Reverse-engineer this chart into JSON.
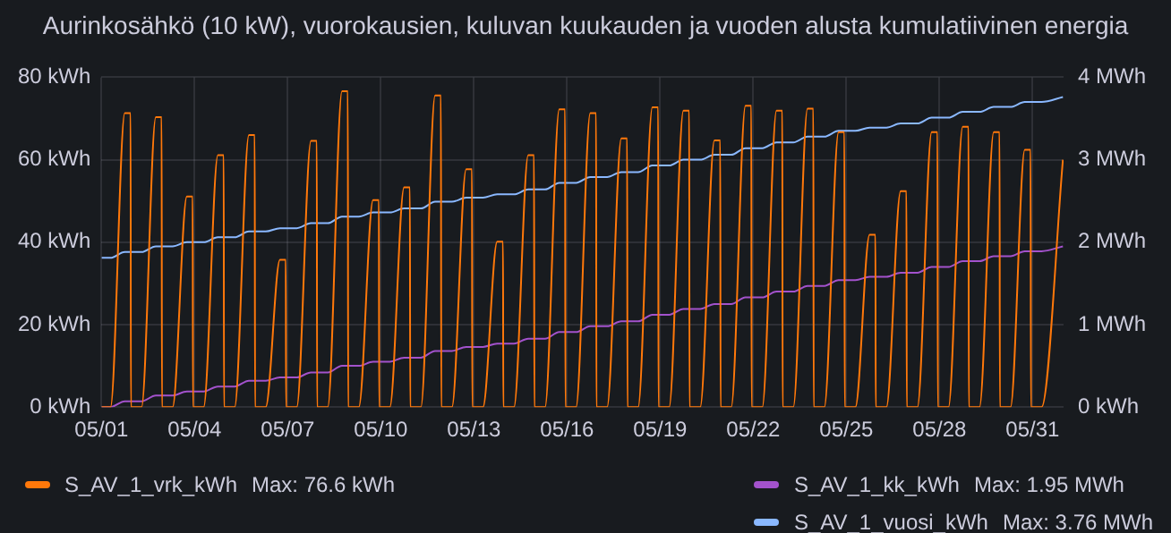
{
  "chart_data": {
    "type": "line",
    "title": "Aurinkosähkö (10 kW), vuorokausien, kuluvan kuukauden ja vuoden alusta kumulatiivinen energia",
    "xlim": [
      "--05-01",
      "--06-01"
    ],
    "xticks": [
      {
        "value": "--05-01",
        "label": "05/01"
      },
      {
        "value": "--05-04",
        "label": "05/04"
      },
      {
        "value": "--05-07",
        "label": "05/07"
      },
      {
        "value": "--05-10",
        "label": "05/10"
      },
      {
        "value": "--05-13",
        "label": "05/13"
      },
      {
        "value": "--05-16",
        "label": "05/16"
      },
      {
        "value": "--05-19",
        "label": "05/19"
      },
      {
        "value": "--05-22",
        "label": "05/22"
      },
      {
        "value": "--05-25",
        "label": "05/25"
      },
      {
        "value": "--05-28",
        "label": "05/28"
      },
      {
        "value": "--05-31",
        "label": "05/31"
      }
    ],
    "ylim": [
      0,
      80
    ],
    "yticks": [
      {
        "value": 0,
        "label": "0 kWh"
      },
      {
        "value": 20,
        "label": "20 kWh"
      },
      {
        "value": 40,
        "label": "40 kWh"
      },
      {
        "value": 60,
        "label": "60 kWh"
      },
      {
        "value": 80,
        "label": "80 kWh"
      }
    ],
    "y2lim": [
      0,
      4
    ],
    "y2ticks": [
      {
        "value": 0,
        "label": "0 kWh"
      },
      {
        "value": 1,
        "label": "1 MWh"
      },
      {
        "value": 2,
        "label": "2 MWh"
      },
      {
        "value": 3,
        "label": "3 MWh"
      },
      {
        "value": 4,
        "label": "4 MWh"
      }
    ],
    "grid": true,
    "legend": "bottom",
    "marker": "none",
    "line_style": "solid",
    "annotations": [
      "Max: 76.6 kWh",
      "Max: 1.95 MWh",
      "Max: 3.76 MWh"
    ],
    "series": [
      {
        "name": "S_AV_1_vrk_kWh",
        "color": "#ff780a",
        "x": [
          "--05-01T00:00",
          "--05-01T07:00",
          "--05-01T18:00",
          "--05-01T22:30",
          "--05-01T22:45",
          "--05-02T07:00",
          "--05-02T18:00",
          "--05-02T22:30",
          "--05-02T22:45",
          "--05-03T07:00",
          "--05-03T18:00",
          "--05-03T22:30",
          "--05-03T22:45",
          "--05-04T07:00",
          "--05-04T18:00",
          "--05-04T22:30",
          "--05-04T22:45",
          "--05-05T07:00",
          "--05-05T18:00",
          "--05-05T22:30",
          "--05-05T22:45",
          "--05-06T07:00",
          "--05-06T18:00",
          "--05-06T22:30",
          "--05-06T22:45",
          "--05-07T07:00",
          "--05-07T18:00",
          "--05-07T22:30",
          "--05-07T22:45",
          "--05-08T07:00",
          "--05-08T18:00",
          "--05-08T22:30",
          "--05-08T22:45",
          "--05-09T07:00",
          "--05-09T18:00",
          "--05-09T22:30",
          "--05-09T22:45",
          "--05-10T07:00",
          "--05-10T18:00",
          "--05-10T22:30",
          "--05-10T22:45",
          "--05-11T07:00",
          "--05-11T18:00",
          "--05-11T22:30",
          "--05-11T22:45",
          "--05-12T07:00",
          "--05-12T18:00",
          "--05-12T22:30",
          "--05-12T22:45",
          "--05-13T07:00",
          "--05-13T18:00",
          "--05-13T22:30",
          "--05-13T22:45",
          "--05-14T07:00",
          "--05-14T18:00",
          "--05-14T22:30",
          "--05-14T22:45",
          "--05-15T07:00",
          "--05-15T18:00",
          "--05-15T22:30",
          "--05-15T22:45",
          "--05-16T07:00",
          "--05-16T18:00",
          "--05-16T22:30",
          "--05-16T22:45",
          "--05-17T07:00",
          "--05-17T18:00",
          "--05-17T22:30",
          "--05-17T22:45",
          "--05-18T07:00",
          "--05-18T18:00",
          "--05-18T22:30",
          "--05-18T22:45",
          "--05-19T07:00",
          "--05-19T18:00",
          "--05-19T22:30",
          "--05-19T22:45",
          "--05-20T07:00",
          "--05-20T18:00",
          "--05-20T22:30",
          "--05-20T22:45",
          "--05-21T07:00",
          "--05-21T18:00",
          "--05-21T22:30",
          "--05-21T22:45",
          "--05-22T07:00",
          "--05-22T18:00",
          "--05-22T22:30",
          "--05-22T22:45",
          "--05-23T07:00",
          "--05-23T18:00",
          "--05-23T22:30",
          "--05-23T22:45",
          "--05-24T07:00",
          "--05-24T18:00",
          "--05-24T22:30",
          "--05-24T22:45",
          "--05-25T07:00",
          "--05-25T18:00",
          "--05-25T22:30",
          "--05-25T22:45",
          "--05-26T07:00",
          "--05-26T18:00",
          "--05-26T22:30",
          "--05-26T22:45",
          "--05-27T07:00",
          "--05-27T18:00",
          "--05-27T22:30",
          "--05-27T22:45",
          "--05-28T07:00",
          "--05-28T18:00",
          "--05-28T22:30",
          "--05-28T22:45",
          "--05-29T07:00",
          "--05-29T18:00",
          "--05-29T22:30",
          "--05-29T22:45",
          "--05-30T07:00",
          "--05-30T18:00",
          "--05-30T22:30",
          "--05-30T22:45",
          "--05-31T07:00",
          "--05-31T23:30"
        ],
        "values": [
          0,
          0,
          71.3,
          71.3,
          0,
          0,
          70.3,
          70.3,
          0,
          0,
          51.1,
          51.1,
          0,
          0,
          61.1,
          61.1,
          0,
          0,
          66.0,
          66.0,
          0,
          0,
          35.7,
          35.7,
          0,
          0,
          64.6,
          64.6,
          0,
          0,
          76.6,
          76.6,
          0,
          0,
          50.2,
          50.2,
          0,
          0,
          53.3,
          53.3,
          0,
          0,
          75.6,
          75.6,
          0,
          0,
          57.7,
          57.7,
          0,
          0,
          40.1,
          40.1,
          0,
          0,
          61.1,
          61.1,
          0,
          0,
          72.2,
          72.2,
          0,
          0,
          71.3,
          71.3,
          0,
          0,
          65.2,
          65.2,
          0,
          0,
          72.7,
          72.7,
          0,
          0,
          71.9,
          71.9,
          0,
          0,
          64.7,
          64.7,
          0,
          0,
          73.1,
          73.1,
          0,
          0,
          71.9,
          71.9,
          0,
          0,
          72.4,
          72.4,
          0,
          0,
          66.7,
          66.7,
          0,
          0,
          41.8,
          41.8,
          0,
          0,
          52.4,
          52.4,
          0,
          0,
          66.7,
          66.7,
          0,
          0,
          68.0,
          68.0,
          0,
          0,
          66.7,
          66.7,
          0,
          0,
          62.4,
          62.4,
          0,
          0,
          60.0
        ]
      },
      {
        "name": "S_AV_1_kk_kWh",
        "color": "#a352cc",
        "axis": "y2",
        "x": [
          "--05-01T00:00",
          "--05-01T07:00",
          "--05-01T18:00",
          "--05-02T07:00",
          "--05-02T18:00",
          "--05-03T07:00",
          "--05-03T18:00",
          "--05-04T07:00",
          "--05-04T18:00",
          "--05-05T07:00",
          "--05-05T18:00",
          "--05-06T07:00",
          "--05-06T18:00",
          "--05-07T07:00",
          "--05-07T18:00",
          "--05-08T07:00",
          "--05-08T18:00",
          "--05-09T07:00",
          "--05-09T18:00",
          "--05-10T07:00",
          "--05-10T18:00",
          "--05-11T07:00",
          "--05-11T18:00",
          "--05-12T07:00",
          "--05-12T18:00",
          "--05-13T07:00",
          "--05-13T18:00",
          "--05-14T07:00",
          "--05-14T18:00",
          "--05-15T07:00",
          "--05-15T18:00",
          "--05-16T07:00",
          "--05-16T18:00",
          "--05-17T07:00",
          "--05-17T18:00",
          "--05-18T07:00",
          "--05-18T18:00",
          "--05-19T07:00",
          "--05-19T18:00",
          "--05-20T07:00",
          "--05-20T18:00",
          "--05-21T07:00",
          "--05-21T18:00",
          "--05-22T07:00",
          "--05-22T18:00",
          "--05-23T07:00",
          "--05-23T18:00",
          "--05-24T07:00",
          "--05-24T18:00",
          "--05-25T07:00",
          "--05-25T18:00",
          "--05-26T07:00",
          "--05-26T18:00",
          "--05-27T07:00",
          "--05-27T18:00",
          "--05-28T07:00",
          "--05-28T18:00",
          "--05-29T07:00",
          "--05-29T18:00",
          "--05-30T07:00",
          "--05-30T18:00",
          "--05-31T07:00",
          "--05-31T23:30"
        ],
        "values": [
          0,
          0,
          0.07,
          0.07,
          0.14,
          0.14,
          0.19,
          0.19,
          0.25,
          0.25,
          0.32,
          0.32,
          0.36,
          0.36,
          0.42,
          0.42,
          0.5,
          0.5,
          0.55,
          0.55,
          0.6,
          0.6,
          0.68,
          0.68,
          0.73,
          0.73,
          0.77,
          0.77,
          0.83,
          0.83,
          0.91,
          0.91,
          0.98,
          0.98,
          1.04,
          1.04,
          1.12,
          1.12,
          1.19,
          1.19,
          1.25,
          1.25,
          1.33,
          1.33,
          1.4,
          1.4,
          1.47,
          1.47,
          1.54,
          1.54,
          1.58,
          1.58,
          1.63,
          1.63,
          1.7,
          1.7,
          1.77,
          1.77,
          1.83,
          1.83,
          1.89,
          1.89,
          1.95
        ]
      },
      {
        "name": "S_AV_1_vuosi_kWh",
        "color": "#8ab8ff",
        "axis": "y2",
        "x": [
          "--05-01T00:00",
          "--05-01T07:00",
          "--05-01T18:00",
          "--05-02T07:00",
          "--05-02T18:00",
          "--05-03T07:00",
          "--05-03T18:00",
          "--05-04T07:00",
          "--05-04T18:00",
          "--05-05T07:00",
          "--05-05T18:00",
          "--05-06T07:00",
          "--05-06T18:00",
          "--05-07T07:00",
          "--05-07T18:00",
          "--05-08T07:00",
          "--05-08T18:00",
          "--05-09T07:00",
          "--05-09T18:00",
          "--05-10T07:00",
          "--05-10T18:00",
          "--05-11T07:00",
          "--05-11T18:00",
          "--05-12T07:00",
          "--05-12T18:00",
          "--05-13T07:00",
          "--05-13T18:00",
          "--05-14T07:00",
          "--05-14T18:00",
          "--05-15T07:00",
          "--05-15T18:00",
          "--05-16T07:00",
          "--05-16T18:00",
          "--05-17T07:00",
          "--05-17T18:00",
          "--05-18T07:00",
          "--05-18T18:00",
          "--05-19T07:00",
          "--05-19T18:00",
          "--05-20T07:00",
          "--05-20T18:00",
          "--05-21T07:00",
          "--05-21T18:00",
          "--05-22T07:00",
          "--05-22T18:00",
          "--05-23T07:00",
          "--05-23T18:00",
          "--05-24T07:00",
          "--05-24T18:00",
          "--05-25T07:00",
          "--05-25T18:00",
          "--05-26T07:00",
          "--05-26T18:00",
          "--05-27T07:00",
          "--05-27T18:00",
          "--05-28T07:00",
          "--05-28T18:00",
          "--05-29T07:00",
          "--05-29T18:00",
          "--05-30T07:00",
          "--05-30T18:00",
          "--05-31T07:00",
          "--05-31T23:30"
        ],
        "values": [
          1.81,
          1.81,
          1.88,
          1.88,
          1.95,
          1.95,
          2.0,
          2.0,
          2.06,
          2.06,
          2.13,
          2.13,
          2.17,
          2.17,
          2.23,
          2.23,
          2.31,
          2.31,
          2.36,
          2.36,
          2.41,
          2.41,
          2.49,
          2.49,
          2.54,
          2.54,
          2.58,
          2.58,
          2.64,
          2.64,
          2.72,
          2.72,
          2.79,
          2.79,
          2.85,
          2.85,
          2.93,
          2.93,
          3.0,
          3.0,
          3.06,
          3.06,
          3.14,
          3.14,
          3.21,
          3.21,
          3.28,
          3.28,
          3.35,
          3.35,
          3.39,
          3.39,
          3.44,
          3.44,
          3.51,
          3.51,
          3.58,
          3.58,
          3.64,
          3.64,
          3.7,
          3.7,
          3.76
        ]
      }
    ]
  }
}
